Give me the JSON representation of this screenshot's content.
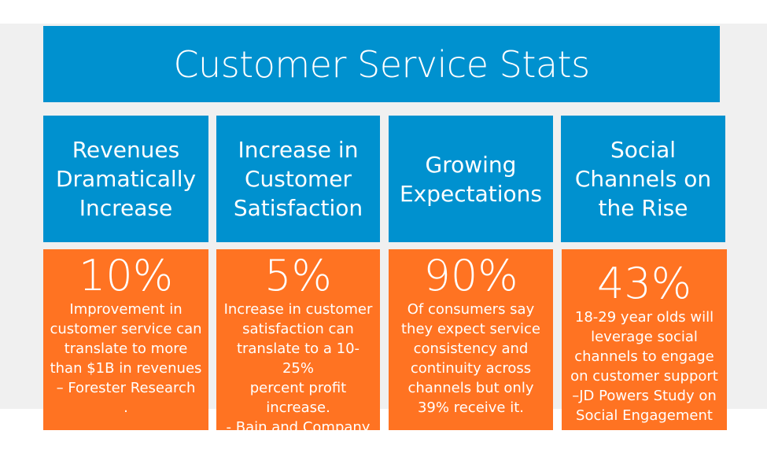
{
  "title": "Customer Service Stats",
  "colors": {
    "blue": "#0091cf",
    "orange": "#ff7322",
    "background": "#f0f0f0"
  },
  "columns": [
    {
      "heading": "Revenues\nDramatically\nIncrease",
      "stat": "10%",
      "text": "Improvement in\ncustomer service can\ntranslate to more\nthan $1B in revenues\n– Forester Research\n."
    },
    {
      "heading": "Increase in\nCustomer\nSatisfaction",
      "stat": "5%",
      "text": "Increase in customer\nsatisfaction can\ntranslate to a 10-25%\npercent profit\nincrease.\n- Bain and Company"
    },
    {
      "heading": "Growing\nExpectations",
      "stat": "90%",
      "text": "Of consumers say\nthey expect service\nconsistency and\ncontinuity across\nchannels but only\n39% receive it."
    },
    {
      "heading": "Social\nChannels on\nthe Rise",
      "stat": "43%",
      "text": "18-29 year olds will\nleverage social\nchannels to engage\non customer support\n–JD Powers Study on\nSocial Engagement"
    }
  ]
}
